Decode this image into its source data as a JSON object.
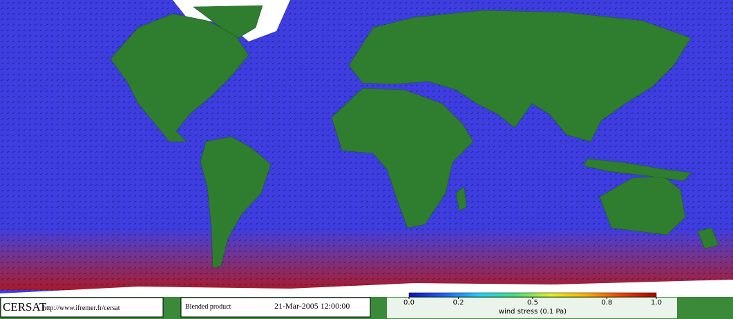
{
  "footer": {
    "logo": "CERSAT",
    "url": "http://www.ifremer.fr/cersat",
    "product": "Blended product",
    "date": "21-Mar-2005 12:00:00"
  },
  "colorbar": {
    "label": "wind stress (0.1 Pa)",
    "lim": [
      0,
      1
    ],
    "ticks": [
      {
        "value": 0,
        "label": "0.0"
      },
      0.2,
      0.5,
      0.8,
      {
        "value": 1,
        "label": "1.0"
      }
    ],
    "colors": [
      "#1010c0",
      "#2060ff",
      "#20d0ff",
      "#40e080",
      "#e0f020",
      "#ffb000",
      "#f04000",
      "#b00000"
    ]
  }
}
